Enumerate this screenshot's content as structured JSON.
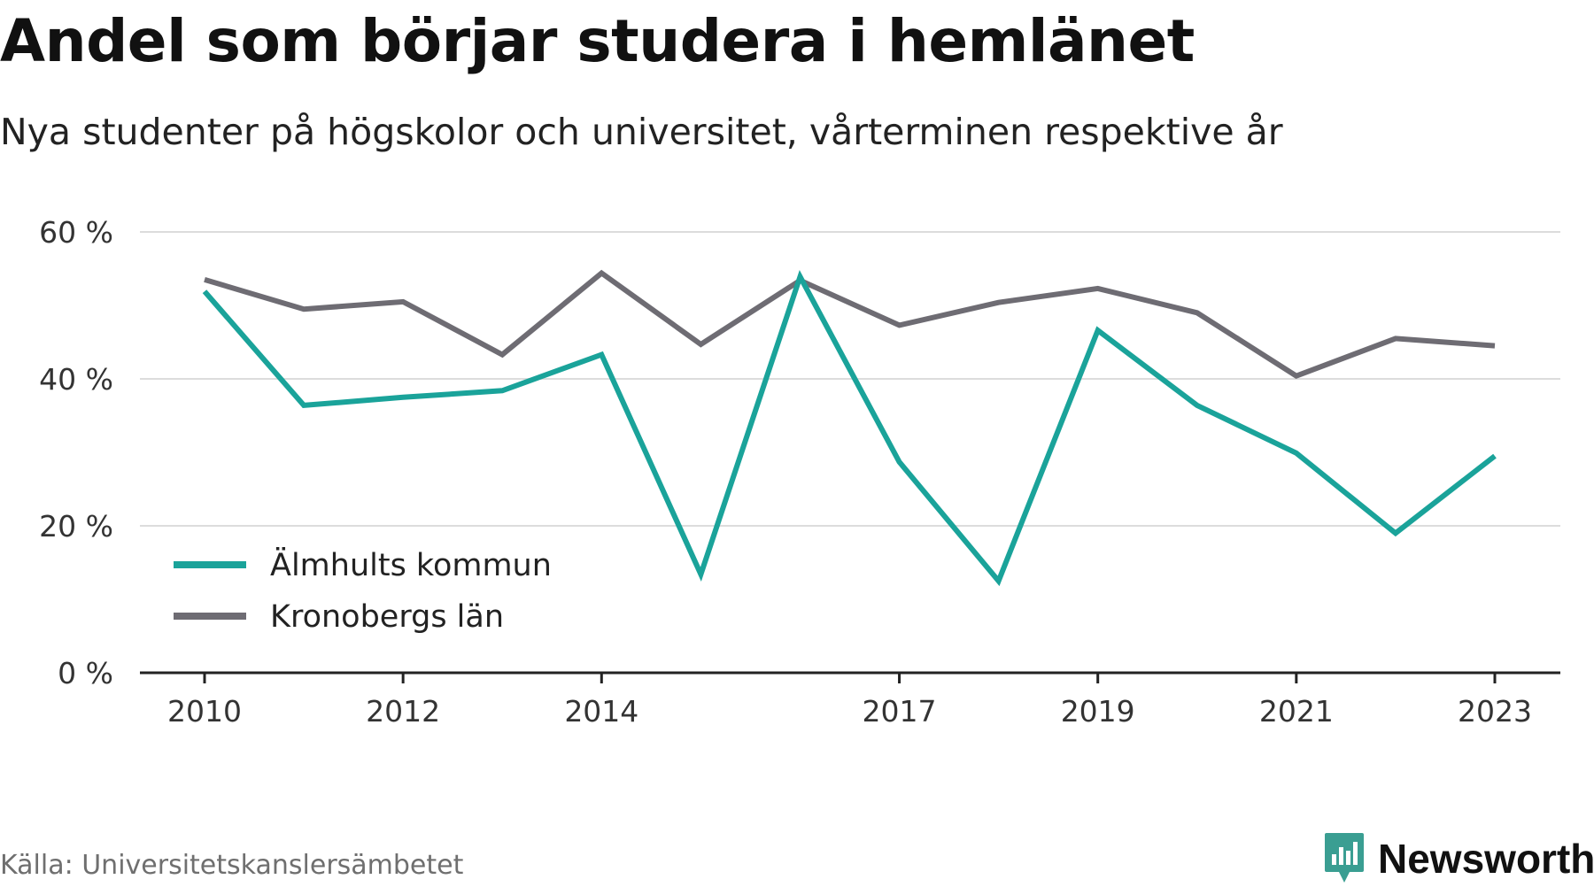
{
  "title": "Andel som börjar studera i hemlänet",
  "subtitle": "Nya studenter på högskolor och universitet, vårterminen respektive år",
  "source": "Källa: Universitetskanslersämbetet",
  "brand": {
    "name": "Newsworthy",
    "color": "#3a9e92",
    "icon": "bar-chart-speech-bubble-icon"
  },
  "chart_data": {
    "type": "line",
    "x": [
      2010,
      2011,
      2012,
      2013,
      2014,
      2015,
      2016,
      2017,
      2018,
      2019,
      2020,
      2021,
      2022,
      2023
    ],
    "x_tick_values": [
      2010,
      2012,
      2014,
      2017,
      2019,
      2021,
      2023
    ],
    "x_tick_labels": [
      "2010",
      "2012",
      "2014",
      "2017",
      "2019",
      "2021",
      "2023"
    ],
    "y_ticks": [
      0,
      20,
      40,
      60
    ],
    "y_tick_labels": [
      "0 %",
      "20 %",
      "40 %",
      "60 %"
    ],
    "ylim": [
      0,
      60
    ],
    "grid": true,
    "legend_position": "bottom-left",
    "series": [
      {
        "name": "Älmhults kommun",
        "color": "#1aa39a",
        "values": [
          51.9,
          36.4,
          37.5,
          38.4,
          43.3,
          13.4,
          53.9,
          28.7,
          12.5,
          46.6,
          36.4,
          29.9,
          19.0,
          29.5
        ]
      },
      {
        "name": "Kronobergs län",
        "color": "#6e6c73",
        "values": [
          53.5,
          49.5,
          50.5,
          43.3,
          54.4,
          44.7,
          53.4,
          47.3,
          50.4,
          52.3,
          49.0,
          40.4,
          45.5,
          44.5
        ]
      }
    ]
  }
}
